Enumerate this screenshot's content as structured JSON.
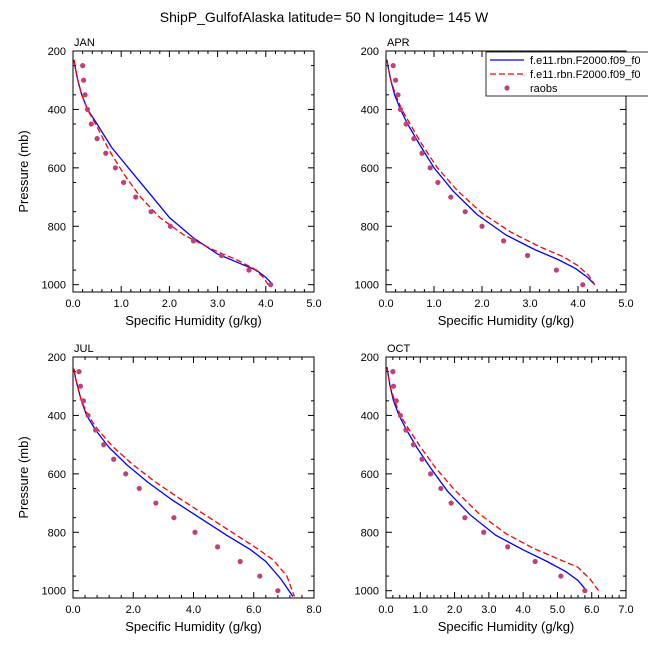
{
  "title": "ShipP_GulfofAlaska  latitude= 50 N longitude= 145 W",
  "colors": {
    "model1": "#0000ff",
    "model2": "#ff0000",
    "raobs": "#c0407a",
    "axis": "#000000"
  },
  "legend": {
    "entries": [
      {
        "label": "f.e11.rbn.F2000.f09_f0",
        "style": "solid",
        "colorKey": "model1"
      },
      {
        "label": "f.e11.rbn.F2000.f09_f0",
        "style": "dashed",
        "colorKey": "model2"
      },
      {
        "label": "raobs",
        "style": "marker",
        "colorKey": "raobs"
      }
    ]
  },
  "chart_data": [
    {
      "type": "line",
      "panel": "JAN",
      "xlabel": "Specific Humidity (g/kg)",
      "ylabel": "Pressure (mb)",
      "xlim": [
        0,
        5
      ],
      "xticks": [
        0,
        1,
        2,
        3,
        4,
        5
      ],
      "xtick_labels": [
        "0.0",
        "1.0",
        "2.0",
        "3.0",
        "4.0",
        "5.0"
      ],
      "ylim": [
        200,
        1025
      ],
      "yticks": [
        200,
        400,
        600,
        800,
        1000
      ],
      "y_reversed": true,
      "series": [
        {
          "name": "f.e11.rbn.F2000.f09_f0",
          "style": "solid",
          "colorKey": "model1",
          "x": [
            0.02,
            0.05,
            0.1,
            0.18,
            0.3,
            0.5,
            0.8,
            1.2,
            1.6,
            2.0,
            2.5,
            3.0,
            3.5,
            3.8,
            4.0,
            4.15
          ],
          "y": [
            230,
            260,
            300,
            350,
            400,
            450,
            530,
            610,
            690,
            770,
            840,
            895,
            930,
            950,
            975,
            1000
          ]
        },
        {
          "name": "f.e11.rbn.F2000.f09_f0",
          "style": "dashed",
          "colorKey": "model2",
          "x": [
            0.02,
            0.05,
            0.1,
            0.18,
            0.3,
            0.5,
            0.75,
            1.05,
            1.4,
            1.8,
            2.3,
            2.9,
            3.4,
            3.75,
            3.95,
            4.05
          ],
          "y": [
            230,
            260,
            300,
            350,
            400,
            460,
            540,
            620,
            700,
            770,
            830,
            880,
            915,
            945,
            975,
            1000
          ]
        }
      ],
      "points": {
        "name": "raobs",
        "colorKey": "raobs",
        "x": [
          0.2,
          0.22,
          0.25,
          0.3,
          0.38,
          0.5,
          0.68,
          0.88,
          1.05,
          1.3,
          1.62,
          2.02,
          2.5,
          3.08,
          3.65,
          4.1
        ],
        "y": [
          250,
          300,
          350,
          400,
          450,
          500,
          550,
          600,
          650,
          700,
          750,
          800,
          850,
          900,
          950,
          1000
        ]
      }
    },
    {
      "type": "line",
      "panel": "APR",
      "xlabel": "Specific Humidity (g/kg)",
      "ylabel": "",
      "xlim": [
        0,
        5
      ],
      "xticks": [
        0,
        1,
        2,
        3,
        4,
        5
      ],
      "xtick_labels": [
        "0.0",
        "1.0",
        "2.0",
        "3.0",
        "4.0",
        "5.0"
      ],
      "ylim": [
        200,
        1025
      ],
      "yticks": [
        200,
        400,
        600,
        800,
        1000
      ],
      "y_reversed": true,
      "series": [
        {
          "name": "f.e11.rbn.F2000.f09_f0",
          "style": "solid",
          "colorKey": "model1",
          "x": [
            0.02,
            0.05,
            0.1,
            0.18,
            0.3,
            0.45,
            0.7,
            1.0,
            1.4,
            1.9,
            2.5,
            3.1,
            3.6,
            3.95,
            4.2,
            4.35
          ],
          "y": [
            230,
            260,
            300,
            350,
            400,
            450,
            520,
            600,
            680,
            760,
            830,
            880,
            915,
            945,
            975,
            1000
          ]
        },
        {
          "name": "f.e11.rbn.F2000.f09_f0",
          "style": "dashed",
          "colorKey": "model2",
          "x": [
            0.02,
            0.05,
            0.1,
            0.2,
            0.33,
            0.5,
            0.75,
            1.07,
            1.5,
            2.0,
            2.6,
            3.2,
            3.7,
            4.0,
            4.22,
            4.35
          ],
          "y": [
            230,
            260,
            300,
            350,
            400,
            450,
            520,
            600,
            680,
            755,
            820,
            870,
            905,
            935,
            968,
            1000
          ]
        }
      ],
      "points": {
        "name": "raobs",
        "colorKey": "raobs",
        "x": [
          0.15,
          0.2,
          0.25,
          0.3,
          0.42,
          0.58,
          0.75,
          0.92,
          1.08,
          1.35,
          1.65,
          2.0,
          2.45,
          2.95,
          3.55,
          4.1
        ],
        "y": [
          250,
          300,
          350,
          400,
          450,
          500,
          550,
          600,
          650,
          700,
          750,
          800,
          850,
          900,
          950,
          1000
        ]
      }
    },
    {
      "type": "line",
      "panel": "JUL",
      "xlabel": "Specific Humidity (g/kg)",
      "ylabel": "Pressure (mb)",
      "xlim": [
        0,
        8
      ],
      "xticks": [
        0,
        2,
        4,
        6,
        8
      ],
      "xtick_labels": [
        "0.0",
        "2.0",
        "4.0",
        "6.0",
        "8.0"
      ],
      "ylim": [
        200,
        1025
      ],
      "yticks": [
        200,
        400,
        600,
        800,
        1000
      ],
      "y_reversed": true,
      "series": [
        {
          "name": "f.e11.rbn.F2000.f09_f0",
          "style": "solid",
          "colorKey": "model1",
          "x": [
            0.03,
            0.08,
            0.15,
            0.28,
            0.45,
            0.75,
            1.2,
            1.8,
            2.5,
            3.3,
            4.2,
            5.1,
            5.9,
            6.4,
            6.9,
            7.3
          ],
          "y": [
            240,
            270,
            300,
            350,
            400,
            450,
            510,
            570,
            630,
            690,
            750,
            810,
            860,
            900,
            960,
            1020
          ]
        },
        {
          "name": "f.e11.rbn.F2000.f09_f0",
          "style": "dashed",
          "colorKey": "model2",
          "x": [
            0.03,
            0.08,
            0.15,
            0.28,
            0.5,
            0.8,
            1.3,
            1.95,
            2.7,
            3.55,
            4.45,
            5.35,
            6.1,
            6.65,
            7.1,
            7.35
          ],
          "y": [
            240,
            270,
            300,
            350,
            400,
            445,
            505,
            565,
            625,
            685,
            745,
            805,
            855,
            895,
            950,
            1020
          ]
        }
      ],
      "points": {
        "name": "raobs",
        "colorKey": "raobs",
        "x": [
          0.2,
          0.25,
          0.35,
          0.5,
          0.75,
          1.02,
          1.35,
          1.75,
          2.2,
          2.75,
          3.35,
          4.05,
          4.8,
          5.55,
          6.2,
          6.8
        ],
        "y": [
          250,
          300,
          350,
          400,
          450,
          500,
          550,
          600,
          650,
          700,
          750,
          800,
          850,
          900,
          950,
          1000
        ]
      }
    },
    {
      "type": "line",
      "panel": "OCT",
      "xlabel": "Specific Humidity (g/kg)",
      "ylabel": "",
      "xlim": [
        0,
        7
      ],
      "xticks": [
        0,
        1,
        2,
        3,
        4,
        5,
        6,
        7
      ],
      "xtick_labels": [
        "0.0",
        "1.0",
        "2.0",
        "3.0",
        "4.0",
        "5.0",
        "6.0",
        "7.0"
      ],
      "ylim": [
        200,
        1025
      ],
      "yticks": [
        200,
        400,
        600,
        800,
        1000
      ],
      "y_reversed": true,
      "series": [
        {
          "name": "f.e11.rbn.F2000.f09_f0",
          "style": "solid",
          "colorKey": "model1",
          "x": [
            0.03,
            0.07,
            0.12,
            0.22,
            0.38,
            0.6,
            0.9,
            1.3,
            1.8,
            2.45,
            3.2,
            4.0,
            4.7,
            5.25,
            5.6,
            5.85
          ],
          "y": [
            235,
            265,
            300,
            350,
            400,
            450,
            510,
            580,
            660,
            740,
            810,
            860,
            900,
            935,
            965,
            1000
          ]
        },
        {
          "name": "f.e11.rbn.F2000.f09_f0",
          "style": "dashed",
          "colorKey": "model2",
          "x": [
            0.03,
            0.07,
            0.12,
            0.25,
            0.42,
            0.68,
            1.02,
            1.45,
            2.0,
            2.7,
            3.5,
            4.3,
            5.0,
            5.6,
            5.95,
            6.2
          ],
          "y": [
            235,
            265,
            300,
            350,
            400,
            450,
            510,
            580,
            655,
            735,
            805,
            855,
            890,
            920,
            960,
            1000
          ]
        }
      ],
      "points": {
        "name": "raobs",
        "colorKey": "raobs",
        "x": [
          0.2,
          0.22,
          0.3,
          0.42,
          0.58,
          0.8,
          1.05,
          1.3,
          1.6,
          1.9,
          2.3,
          2.85,
          3.55,
          4.35,
          5.1,
          5.8
        ],
        "y": [
          250,
          300,
          350,
          400,
          450,
          500,
          550,
          600,
          650,
          700,
          750,
          800,
          850,
          900,
          950,
          1000
        ]
      }
    }
  ]
}
